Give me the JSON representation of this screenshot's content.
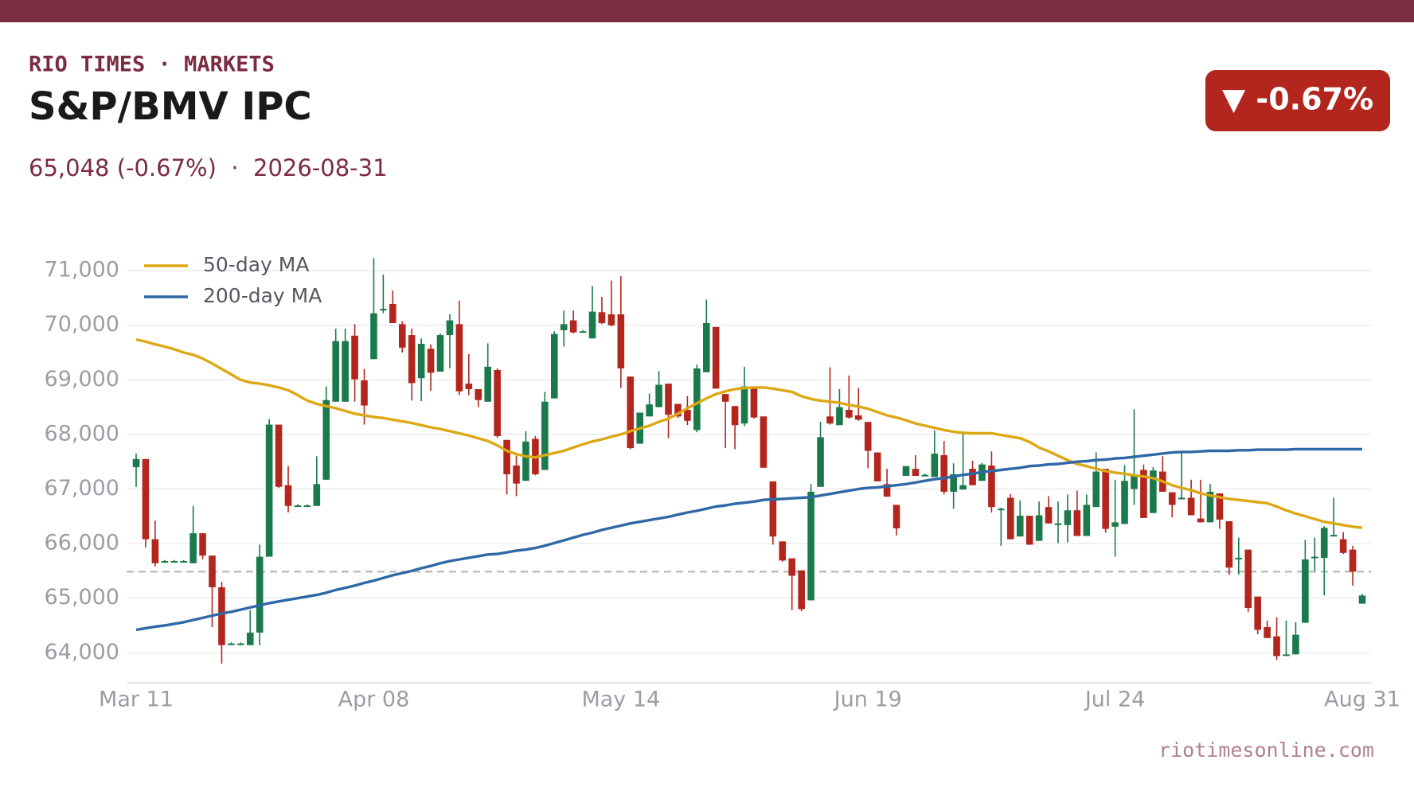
{
  "header": {
    "brand": "RIO TIMES · MARKETS",
    "title": "S&P/BMV IPC",
    "subtitle": "65,048 (-0.67%)  ·  2026-08-31",
    "badge": "▼ -0.67%"
  },
  "footer": {
    "source": "riotimesonline.com"
  },
  "chart_data": {
    "type": "candlestick",
    "categories": [
      "Mar 11",
      null,
      null,
      null,
      null,
      null,
      null,
      null,
      null,
      null,
      null,
      null,
      null,
      null,
      null,
      null,
      null,
      null,
      null,
      null,
      null,
      null,
      null,
      null,
      null,
      "Apr 08",
      null,
      null,
      null,
      null,
      null,
      null,
      null,
      null,
      null,
      null,
      null,
      null,
      null,
      null,
      null,
      null,
      null,
      null,
      null,
      null,
      null,
      null,
      null,
      null,
      null,
      "May 14",
      null,
      null,
      null,
      null,
      null,
      null,
      null,
      null,
      null,
      null,
      null,
      null,
      null,
      null,
      null,
      null,
      null,
      null,
      null,
      null,
      null,
      null,
      null,
      null,
      null,
      "Jun 19",
      null,
      null,
      null,
      null,
      null,
      null,
      null,
      null,
      null,
      null,
      null,
      null,
      null,
      null,
      null,
      null,
      null,
      null,
      null,
      null,
      null,
      null,
      null,
      null,
      null,
      "Jul 24",
      null,
      null,
      null,
      null,
      null,
      null,
      null,
      null,
      null,
      null,
      null,
      null,
      null,
      null,
      null,
      null,
      null,
      null,
      null,
      null,
      null,
      null,
      null,
      null,
      null,
      "Aug 31"
    ],
    "open": [
      67400,
      67550,
      66080,
      65680,
      65680,
      65680,
      65640,
      66190,
      65780,
      65200,
      64170,
      64170,
      64140,
      64370,
      65760,
      68180,
      67070,
      66700,
      66700,
      66690,
      67170,
      68600,
      68600,
      69810,
      68990,
      69380,
      70300,
      70390,
      70020,
      69820,
      69030,
      69570,
      69150,
      69820,
      70020,
      68930,
      68830,
      68600,
      69180,
      67900,
      67430,
      67150,
      67920,
      67350,
      68660,
      69910,
      70090,
      69890,
      69760,
      70240,
      70200,
      70200,
      69060,
      67830,
      68330,
      68500,
      68930,
      68560,
      68450,
      68080,
      69140,
      69970,
      68740,
      68520,
      68200,
      68880,
      68330,
      67140,
      66040,
      65730,
      65510,
      64960,
      67040,
      68330,
      68170,
      68450,
      68350,
      68230,
      67670,
      67090,
      66710,
      67240,
      67370,
      67260,
      67220,
      67620,
      66950,
      66990,
      67370,
      67150,
      67430,
      66640,
      66840,
      66130,
      66510,
      66050,
      66670,
      66370,
      66340,
      66610,
      66140,
      66670,
      67370,
      66310,
      66360,
      67000,
      67350,
      66560,
      67320,
      66940,
      66840,
      66840,
      66460,
      66390,
      66920,
      66410,
      65740,
      65890,
      65030,
      64470,
      64300,
      63970,
      63970,
      64550,
      65760,
      65740,
      66160,
      66080,
      65890,
      64900
    ],
    "high": [
      67650,
      67550,
      66420,
      65700,
      65700,
      65700,
      66690,
      66190,
      65780,
      65300,
      64190,
      64190,
      64780,
      65980,
      68280,
      68180,
      67420,
      66720,
      66720,
      67600,
      68880,
      69940,
      69940,
      70020,
      69200,
      71230,
      70930,
      70640,
      70070,
      69940,
      69760,
      69650,
      69850,
      70200,
      70450,
      69470,
      68830,
      69670,
      69210,
      67900,
      67610,
      68060,
      67970,
      68780,
      69890,
      70270,
      70270,
      69910,
      70720,
      70520,
      70820,
      70900,
      69060,
      68400,
      68750,
      69160,
      68930,
      68560,
      68700,
      69280,
      70470,
      69970,
      68740,
      68520,
      69240,
      68880,
      68330,
      67140,
      66040,
      65730,
      65510,
      67090,
      68230,
      69230,
      68830,
      69080,
      68850,
      68230,
      67670,
      67370,
      66710,
      67420,
      67620,
      67280,
      68070,
      67880,
      67470,
      68030,
      67520,
      67480,
      67690,
      66660,
      66910,
      66790,
      66510,
      66770,
      66870,
      66770,
      66900,
      66970,
      66900,
      67670,
      67370,
      67170,
      67440,
      68460,
      67450,
      67400,
      67600,
      66940,
      67670,
      67170,
      67170,
      67090,
      66920,
      66410,
      66110,
      65890,
      65030,
      64590,
      64650,
      64590,
      64560,
      66070,
      66110,
      66320,
      66840,
      66210,
      65960,
      65080
    ],
    "low": [
      67040,
      65930,
      65580,
      65660,
      65660,
      65660,
      65640,
      65710,
      64470,
      63800,
      64150,
      64150,
      64140,
      64140,
      65760,
      67020,
      66570,
      66680,
      66680,
      66690,
      67170,
      68600,
      68600,
      68600,
      68180,
      69380,
      70220,
      70040,
      69500,
      68620,
      68610,
      68800,
      69150,
      69210,
      68720,
      68720,
      68500,
      68600,
      67940,
      66900,
      66870,
      67150,
      67250,
      67350,
      68660,
      69610,
      69850,
      69870,
      69760,
      70020,
      69980,
      68850,
      67730,
      67830,
      68330,
      68500,
      67930,
      68300,
      68170,
      68040,
      69140,
      68840,
      67750,
      67730,
      68150,
      68290,
      67390,
      65980,
      65670,
      64780,
      64760,
      64960,
      67040,
      68180,
      68170,
      68290,
      68250,
      67380,
      67140,
      66860,
      66150,
      67240,
      67240,
      67240,
      67220,
      66900,
      66640,
      66990,
      67070,
      67150,
      66570,
      65960,
      66080,
      66130,
      65980,
      66050,
      66370,
      66010,
      66020,
      66140,
      66140,
      66670,
      66200,
      65760,
      66360,
      66710,
      66470,
      66560,
      66950,
      66480,
      66820,
      66520,
      66390,
      66390,
      66270,
      65430,
      65430,
      64750,
      64340,
      64270,
      63870,
      63950,
      63970,
      64550,
      65500,
      65050,
      66140,
      65810,
      65230,
      64900
    ],
    "close": [
      67550,
      66080,
      65640,
      65680,
      65680,
      65680,
      66190,
      65780,
      65200,
      64140,
      64170,
      64170,
      64370,
      65760,
      68180,
      67040,
      66690,
      66700,
      66700,
      67090,
      68630,
      69710,
      69710,
      69010,
      68530,
      70220,
      70300,
      70040,
      69590,
      68940,
      69660,
      69130,
      69820,
      70090,
      68790,
      68830,
      68630,
      69240,
      67970,
      67270,
      67100,
      67870,
      67270,
      68600,
      69840,
      70020,
      69870,
      69890,
      70250,
      70040,
      70000,
      69210,
      67750,
      68400,
      68550,
      68910,
      68360,
      68330,
      68250,
      69210,
      70040,
      68840,
      68600,
      68170,
      68880,
      68310,
      67390,
      66130,
      65690,
      65410,
      64800,
      66950,
      67950,
      68200,
      68500,
      68310,
      68270,
      67700,
      67140,
      66860,
      66280,
      67420,
      67240,
      67260,
      67650,
      66950,
      67270,
      67070,
      67070,
      67450,
      66670,
      66640,
      66080,
      66510,
      65980,
      66520,
      66370,
      66370,
      66610,
      66140,
      66710,
      67320,
      66270,
      66390,
      67150,
      67270,
      66470,
      67340,
      66950,
      66710,
      66840,
      66520,
      66390,
      66950,
      66440,
      65560,
      65740,
      64820,
      64420,
      64270,
      63940,
      63970,
      64330,
      65710,
      65760,
      66290,
      66160,
      65830,
      65486,
      65048
    ],
    "up_color": "#1b7a4b",
    "down_color": "#b3261e",
    "series": [
      {
        "name": "50-day MA",
        "color": "#dca814",
        "values": [
          69740,
          69700,
          69650,
          69610,
          69560,
          69500,
          69460,
          69390,
          69300,
          69200,
          69100,
          69000,
          68950,
          68930,
          68900,
          68860,
          68810,
          68720,
          68620,
          68560,
          68520,
          68480,
          68430,
          68380,
          68350,
          68320,
          68300,
          68270,
          68240,
          68210,
          68170,
          68130,
          68100,
          68060,
          68020,
          67980,
          67930,
          67880,
          67800,
          67700,
          67640,
          67600,
          67580,
          67620,
          67660,
          67700,
          67760,
          67820,
          67870,
          67910,
          67960,
          68000,
          68060,
          68110,
          68160,
          68230,
          68290,
          68380,
          68480,
          68570,
          68660,
          68740,
          68790,
          68830,
          68850,
          68860,
          68860,
          68840,
          68810,
          68780,
          68700,
          68650,
          68620,
          68600,
          68580,
          68540,
          68510,
          68470,
          68410,
          68350,
          68310,
          68260,
          68200,
          68160,
          68120,
          68080,
          68050,
          68030,
          68020,
          68020,
          68020,
          67990,
          67960,
          67930,
          67860,
          67760,
          67690,
          67610,
          67530,
          67460,
          67420,
          67370,
          67330,
          67300,
          67280,
          67250,
          67230,
          67200,
          67140,
          67070,
          67020,
          66980,
          66920,
          66880,
          66850,
          66820,
          66800,
          66780,
          66760,
          66740,
          66680,
          66610,
          66550,
          66500,
          66450,
          66400,
          66370,
          66340,
          66310,
          66290
        ]
      },
      {
        "name": "200-day MA",
        "color": "#2f68a6",
        "values": [
          64420,
          64450,
          64480,
          64500,
          64530,
          64560,
          64600,
          64640,
          64680,
          64720,
          64750,
          64790,
          64830,
          64870,
          64910,
          64940,
          64970,
          65000,
          65030,
          65060,
          65100,
          65150,
          65190,
          65230,
          65280,
          65320,
          65370,
          65420,
          65460,
          65500,
          65550,
          65590,
          65640,
          65680,
          65710,
          65740,
          65770,
          65800,
          65810,
          65840,
          65870,
          65890,
          65920,
          65960,
          66010,
          66060,
          66110,
          66160,
          66200,
          66250,
          66290,
          66330,
          66370,
          66400,
          66430,
          66460,
          66490,
          66530,
          66570,
          66600,
          66640,
          66680,
          66700,
          66730,
          66750,
          66770,
          66800,
          66810,
          66820,
          66830,
          66840,
          66850,
          66880,
          66910,
          66940,
          66970,
          67000,
          67020,
          67030,
          67050,
          67070,
          67090,
          67120,
          67150,
          67180,
          67200,
          67230,
          67260,
          67280,
          67310,
          67330,
          67350,
          67370,
          67390,
          67420,
          67430,
          67450,
          67460,
          67480,
          67500,
          67510,
          67530,
          67540,
          67560,
          67570,
          67590,
          67610,
          67630,
          67650,
          67670,
          67680,
          67680,
          67690,
          67700,
          67700,
          67700,
          67710,
          67710,
          67720,
          67720,
          67720,
          67720,
          67730,
          67730,
          67730,
          67730,
          67730,
          67730,
          67730,
          67730
        ]
      }
    ],
    "reference_line": 65486,
    "ylim": [
      63450,
      71250
    ],
    "yticks": [
      {
        "value": 64000,
        "label": "64,000"
      },
      {
        "value": 65000,
        "label": "65,000"
      },
      {
        "value": 66000,
        "label": "66,000"
      },
      {
        "value": 67000,
        "label": "67,000"
      },
      {
        "value": 68000,
        "label": "68,000"
      },
      {
        "value": 69000,
        "label": "69,000"
      },
      {
        "value": 70000,
        "label": "70,000"
      },
      {
        "value": 71000,
        "label": "71,000"
      }
    ],
    "grid": true,
    "legend": "upper left"
  }
}
